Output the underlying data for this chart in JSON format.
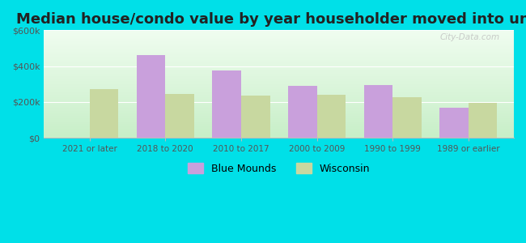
{
  "title": "Median house/condo value by year householder moved into unit",
  "categories": [
    "2021 or later",
    "2018 to 2020",
    "2010 to 2017",
    "2000 to 2009",
    "1990 to 1999",
    "1989 or earlier"
  ],
  "blue_mounds": [
    0,
    460000,
    375000,
    290000,
    295000,
    170000
  ],
  "wisconsin": [
    270000,
    245000,
    235000,
    240000,
    225000,
    195000
  ],
  "blue_mounds_color": "#c9a0dc",
  "wisconsin_color": "#c8d8a0",
  "bg_top_color": "#f0fdf0",
  "bg_bottom_color": "#c8efc8",
  "outer_background": "#00e0e8",
  "ylim": [
    0,
    600000
  ],
  "yticks": [
    0,
    200000,
    400000,
    600000
  ],
  "ytick_labels": [
    "$0",
    "$200k",
    "$400k",
    "$600k"
  ],
  "bar_width": 0.38,
  "title_fontsize": 13,
  "legend_labels": [
    "Blue Mounds",
    "Wisconsin"
  ],
  "watermark": "City-Data.com"
}
